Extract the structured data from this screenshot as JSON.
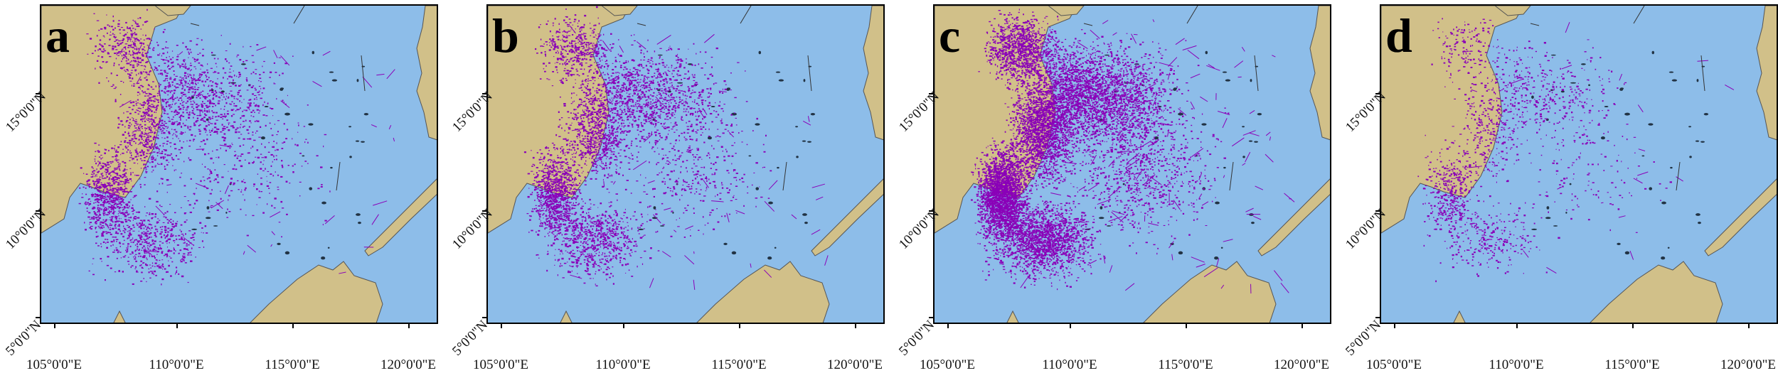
{
  "panels": [
    {
      "label": "a",
      "density": "medium"
    },
    {
      "label": "b",
      "density": "medium-high"
    },
    {
      "label": "c",
      "density": "high"
    },
    {
      "label": "d",
      "density": "low"
    }
  ],
  "axis": {
    "x_ticks": [
      "105°0'0\"E",
      "110°0'0\"E",
      "115°0'0\"E",
      "120°0'0\"E"
    ],
    "y_ticks": [
      "15°0'0\"N",
      "10°0'0\"N",
      "5°0'0\"N"
    ]
  },
  "colors": {
    "sea": "#8dbde9",
    "land": "#d1c089",
    "fishing_activity": "#8a00b8",
    "coast": "#555555"
  }
}
